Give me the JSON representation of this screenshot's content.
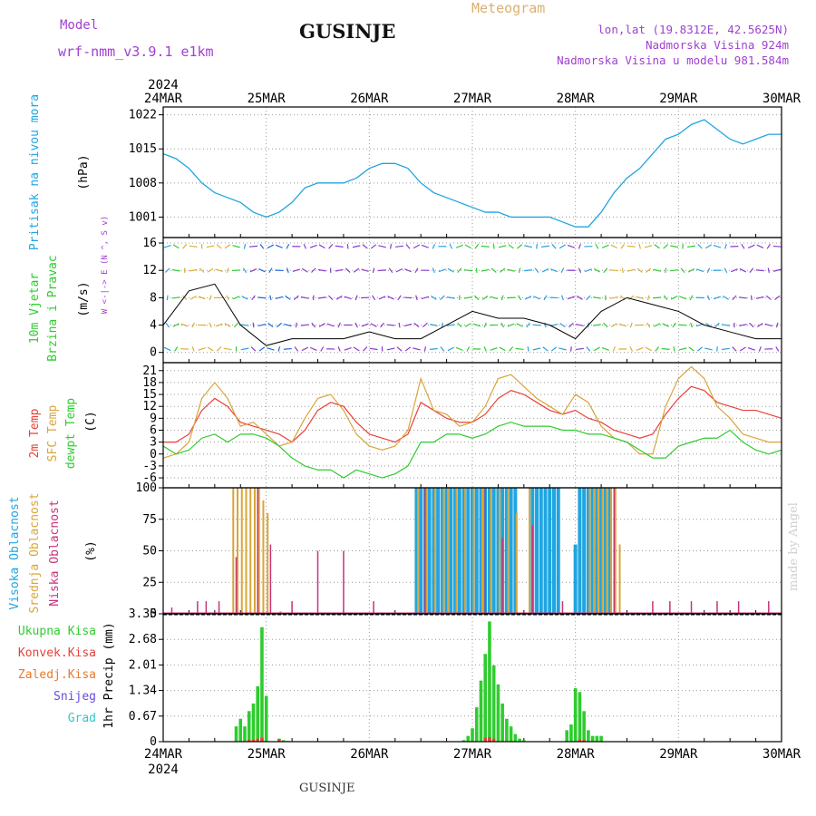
{
  "header": {
    "model_label": "Model",
    "model_name": "wrf-nmm_v3.9.1 e1km",
    "location": "GUSINJE",
    "product": "Meteogram",
    "lonlat": "lon,lat (19.8312E, 42.5625N)",
    "elevation": "Nadmorska Visina 924m",
    "model_elevation": "Nadmorska Visina u modelu 981.584m",
    "footer_location": "GUSINJE",
    "signature": "made by Angel"
  },
  "colors": {
    "pressure": "#1fa5e0",
    "temp_2m": "#e8413a",
    "temp_sfc": "#d9a53a",
    "dewpoint": "#2ecc2e",
    "cloud_high": "#1fa5e0",
    "cloud_mid": "#d9a53a",
    "cloud_low": "#c8327a",
    "total_precip": "#2ecc2e",
    "conv_precip": "#e8413a",
    "freezing": "#e87a2a",
    "snow": "#6a4ae0",
    "grad": "#2ec8c8",
    "header_purple": "#a040d0",
    "header_tan": "#d9b070"
  },
  "chart_data": [
    {
      "type": "line",
      "panel": "pressure",
      "ylabel_lines": [
        "Pritisak na nivou mora",
        "(hPa)"
      ],
      "x_axis": {
        "type": "time",
        "start": "2024-03-24T00",
        "end": "2024-03-30T00",
        "ticks": [
          "24MAR",
          "25MAR",
          "26MAR",
          "27MAR",
          "28MAR",
          "29MAR",
          "30MAR"
        ],
        "year_label": "2024"
      },
      "yticks": [
        1001,
        1008,
        1015,
        1022
      ],
      "ylim": [
        996.8,
        1023.6
      ],
      "grid": true,
      "series": [
        {
          "x": [
            0,
            3,
            6,
            9,
            12,
            15,
            18,
            21,
            24,
            27,
            30,
            33,
            36,
            39,
            42,
            45,
            48,
            51,
            54,
            57,
            60,
            63,
            66,
            69,
            72,
            75,
            78,
            81,
            84,
            87,
            90,
            93,
            96,
            99,
            102,
            105,
            108,
            111,
            114,
            117,
            120,
            123,
            126,
            129,
            132,
            135,
            138,
            141,
            144
          ],
          "values": [
            1014,
            1013,
            1011,
            1008,
            1006,
            1005,
            1004,
            1002,
            1001,
            1002,
            1004,
            1007,
            1008,
            1008,
            1008,
            1009,
            1011,
            1012,
            1012,
            1011,
            1008,
            1006,
            1005,
            1004,
            1003,
            1002,
            1002,
            1001,
            1001,
            1001,
            1001,
            1000,
            999,
            999,
            1002,
            1006,
            1009,
            1011,
            1014,
            1017,
            1018,
            1020,
            1021,
            1019,
            1017,
            1016,
            1017,
            1018,
            1018
          ]
        }
      ]
    },
    {
      "type": "barbs",
      "panel": "wind",
      "ylabel_lines": [
        "10m Vjetar",
        "Brzina i Pravac",
        "(m/s)"
      ],
      "direction_legend": "W <-|-> E  (N ^, S v)",
      "yticks": [
        0,
        4,
        8,
        12,
        16
      ],
      "ylim": [
        -1.5,
        16.8
      ],
      "grid": true,
      "series": [
        {
          "name": "speed",
          "x": [
            0,
            6,
            12,
            18,
            24,
            30,
            36,
            42,
            48,
            54,
            60,
            66,
            72,
            78,
            84,
            90,
            96,
            102,
            108,
            114,
            120,
            126,
            132,
            138,
            144
          ],
          "values": [
            4,
            9,
            10,
            4,
            1,
            2,
            2,
            2,
            3,
            2,
            2,
            4,
            6,
            5,
            5,
            4,
            2,
            6,
            8,
            7,
            6,
            4,
            3,
            2,
            2
          ]
        }
      ]
    },
    {
      "type": "line",
      "panel": "temperature",
      "ylabel_lines": [
        "2m Temp",
        "SFC Temp",
        "dewpt Temp",
        "(C)"
      ],
      "yticks": [
        -6,
        -3,
        0,
        3,
        6,
        9,
        12,
        15,
        18,
        21
      ],
      "ylim": [
        -8.5,
        23
      ],
      "grid": true,
      "series": [
        {
          "name": "2m Temp",
          "x": [
            0,
            3,
            6,
            9,
            12,
            15,
            18,
            21,
            24,
            27,
            30,
            33,
            36,
            39,
            42,
            45,
            48,
            51,
            54,
            57,
            60,
            63,
            66,
            69,
            72,
            75,
            78,
            81,
            84,
            87,
            90,
            93,
            96,
            99,
            102,
            105,
            108,
            111,
            114,
            117,
            120,
            123,
            126,
            129,
            132,
            135,
            138,
            141,
            144
          ],
          "values": [
            3,
            3,
            5,
            11,
            14,
            12,
            8,
            7,
            6,
            5,
            3,
            6,
            11,
            13,
            12,
            8,
            5,
            4,
            3,
            5,
            13,
            11,
            9,
            8,
            8,
            10,
            14,
            16,
            15,
            13,
            11,
            10,
            11,
            9,
            8,
            6,
            5,
            4,
            5,
            10,
            14,
            17,
            16,
            13,
            12,
            11,
            11,
            10,
            9
          ]
        },
        {
          "name": "SFC Temp",
          "x": [
            0,
            3,
            6,
            9,
            12,
            15,
            18,
            21,
            24,
            27,
            30,
            33,
            36,
            39,
            42,
            45,
            48,
            51,
            54,
            57,
            60,
            63,
            66,
            69,
            72,
            75,
            78,
            81,
            84,
            87,
            90,
            93,
            96,
            99,
            102,
            105,
            108,
            111,
            114,
            117,
            120,
            123,
            126,
            129,
            132,
            135,
            138,
            141,
            144
          ],
          "values": [
            -1,
            0,
            3,
            14,
            18,
            14,
            7,
            8,
            5,
            2,
            3,
            9,
            14,
            15,
            11,
            5,
            2,
            1,
            2,
            6,
            19,
            11,
            10,
            7,
            8,
            12,
            19,
            20,
            17,
            14,
            12,
            10,
            15,
            13,
            7,
            4,
            3,
            0,
            0,
            12,
            19,
            22,
            19,
            12,
            9,
            5,
            4,
            3,
            3
          ]
        },
        {
          "name": "dewpt Temp",
          "x": [
            0,
            3,
            6,
            9,
            12,
            15,
            18,
            21,
            24,
            27,
            30,
            33,
            36,
            39,
            42,
            45,
            48,
            51,
            54,
            57,
            60,
            63,
            66,
            69,
            72,
            75,
            78,
            81,
            84,
            87,
            90,
            93,
            96,
            99,
            102,
            105,
            108,
            111,
            114,
            117,
            120,
            123,
            126,
            129,
            132,
            135,
            138,
            141,
            144
          ],
          "values": [
            2,
            0,
            1,
            4,
            5,
            3,
            5,
            5,
            4,
            2,
            -1,
            -3,
            -4,
            -4,
            -6,
            -4,
            -5,
            -6,
            -5,
            -3,
            3,
            3,
            5,
            5,
            4,
            5,
            7,
            8,
            7,
            7,
            7,
            6,
            6,
            5,
            5,
            4,
            3,
            1,
            -1,
            -1,
            2,
            3,
            4,
            4,
            6,
            3,
            1,
            0,
            1
          ]
        }
      ]
    },
    {
      "type": "bar",
      "panel": "clouds",
      "ylabel_lines": [
        "Visoka Oblacnost",
        "Srednja Oblacnost",
        "Niska Oblacnost",
        "(%)"
      ],
      "yticks": [
        0,
        25,
        50,
        75,
        100
      ],
      "ylim": [
        0,
        100
      ],
      "grid": true,
      "series": [
        {
          "name": "Visoka Oblacnost",
          "x": [
            59,
            60,
            61,
            62,
            63,
            64,
            65,
            66,
            67,
            68,
            69,
            70,
            71,
            72,
            73,
            74,
            75,
            76,
            77,
            78,
            79,
            80,
            81,
            82,
            86,
            87,
            88,
            89,
            90,
            91,
            92,
            96,
            97,
            98,
            99,
            100,
            101,
            102,
            103,
            104
          ],
          "values": [
            100,
            100,
            100,
            100,
            100,
            100,
            100,
            100,
            100,
            100,
            100,
            100,
            100,
            100,
            100,
            100,
            100,
            100,
            100,
            100,
            100,
            100,
            100,
            100,
            100,
            100,
            100,
            100,
            100,
            100,
            100,
            55,
            100,
            100,
            100,
            100,
            100,
            100,
            100,
            100
          ]
        },
        {
          "name": "Srednja Oblacnost",
          "x": [
            16,
            17,
            18,
            19,
            20,
            21,
            22,
            23,
            24,
            27,
            59,
            61,
            63,
            65,
            66,
            68,
            70,
            72,
            74,
            76,
            78,
            80,
            82,
            85,
            99,
            100,
            101,
            102,
            103,
            104,
            105,
            106
          ],
          "values": [
            100,
            100,
            100,
            100,
            100,
            100,
            100,
            90,
            80,
            2,
            100,
            100,
            100,
            100,
            100,
            100,
            100,
            100,
            100,
            100,
            100,
            100,
            80,
            100,
            100,
            100,
            100,
            100,
            100,
            100,
            100,
            55
          ]
        },
        {
          "name": "Niska Oblacnost",
          "x": [
            2,
            8,
            10,
            13,
            17,
            22,
            25,
            30,
            36,
            42,
            49,
            61,
            75,
            79,
            86,
            93,
            105,
            114,
            118,
            123,
            129,
            134,
            141
          ],
          "values": [
            5,
            10,
            10,
            10,
            45,
            100,
            55,
            10,
            50,
            50,
            10,
            100,
            100,
            60,
            70,
            10,
            100,
            10,
            10,
            10,
            10,
            10,
            10
          ]
        }
      ]
    },
    {
      "type": "bar",
      "panel": "precipitation",
      "ylabel_lines": [
        "1hr Precip (mm)"
      ],
      "legend": [
        "Ukupna Kisa",
        "Konvek.Kisa",
        "Zaledj.Kisa",
        "Snijeg",
        "Grad"
      ],
      "yticks": [
        0,
        0.67,
        1.34,
        2.01,
        2.68,
        3.35
      ],
      "ylim": [
        0,
        3.35
      ],
      "grid": true,
      "series": [
        {
          "name": "Ukupna Kisa",
          "x": [
            17,
            18,
            19,
            20,
            21,
            22,
            23,
            24,
            25,
            26,
            27,
            28,
            29,
            70,
            71,
            72,
            73,
            74,
            75,
            76,
            77,
            78,
            79,
            80,
            81,
            82,
            83,
            84,
            94,
            95,
            96,
            97,
            98,
            99,
            100,
            101,
            102
          ],
          "values": [
            0.4,
            0.6,
            0.4,
            0.8,
            1.0,
            1.45,
            3.0,
            1.2,
            0,
            0,
            0.08,
            0.04,
            0.02,
            0.04,
            0.15,
            0.35,
            0.9,
            1.6,
            2.3,
            3.15,
            2.0,
            1.5,
            1.0,
            0.6,
            0.4,
            0.2,
            0.08,
            0.04,
            0.3,
            0.45,
            1.4,
            1.3,
            0.8,
            0.3,
            0.15,
            0.15,
            0.15
          ]
        },
        {
          "name": "Konvek.Kisa",
          "x": [
            20,
            21,
            22,
            23,
            27,
            75,
            76,
            77,
            97,
            98
          ],
          "values": [
            0.05,
            0.05,
            0.08,
            0.1,
            0.06,
            0.1,
            0.12,
            0.08,
            0.05,
            0.04
          ]
        }
      ]
    }
  ]
}
